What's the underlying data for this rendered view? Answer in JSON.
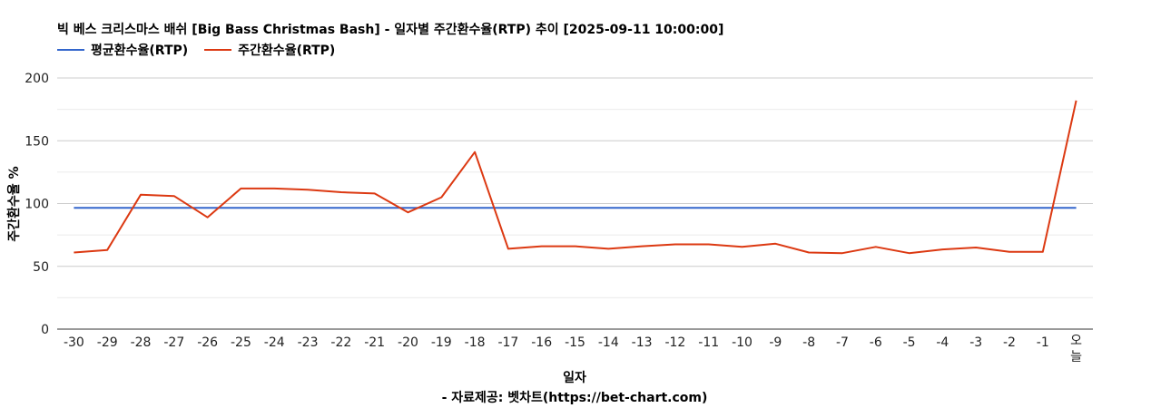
{
  "title": "빅 베스 크리스마스 배쉬 [Big Bass Christmas Bash] - 일자별 주간환수율(RTP) 추이 [2025-09-11 10:00:00]",
  "source": "- 자료제공: 벳차트(https://bet-chart.com)",
  "colors": {
    "avg": "#3366cc",
    "weekly": "#dc3912",
    "grid": "#cccccc",
    "minor_grid": "#ebebeb",
    "axis": "#333333"
  },
  "chart_data": {
    "type": "line",
    "title": "빅 베스 크리스마스 배쉬 [Big Bass Christmas Bash] - 일자별 주간환수율(RTP) 추이 [2025-09-11 10:00:00]",
    "xlabel": "일자",
    "ylabel": "주간환수율 %",
    "ylim": [
      0,
      200
    ],
    "yticks": [
      "0",
      "50",
      "100",
      "150",
      "200"
    ],
    "grid": true,
    "legend": "top-left",
    "categories": [
      "-30",
      "-29",
      "-28",
      "-27",
      "-26",
      "-25",
      "-24",
      "-23",
      "-22",
      "-21",
      "-20",
      "-19",
      "-18",
      "-17",
      "-16",
      "-15",
      "-14",
      "-13",
      "-12",
      "-11",
      "-10",
      "-9",
      "-8",
      "-7",
      "-6",
      "-5",
      "-4",
      "-3",
      "-2",
      "-1",
      "오늘"
    ],
    "series": [
      {
        "name": "평균환수율(RTP)",
        "color": "#3366cc",
        "values": [
          96.5,
          96.5,
          96.5,
          96.5,
          96.5,
          96.5,
          96.5,
          96.5,
          96.5,
          96.5,
          96.5,
          96.5,
          96.5,
          96.5,
          96.5,
          96.5,
          96.5,
          96.5,
          96.5,
          96.5,
          96.5,
          96.5,
          96.5,
          96.5,
          96.5,
          96.5,
          96.5,
          96.5,
          96.5,
          96.5,
          96.5
        ]
      },
      {
        "name": "주간환수율(RTP)",
        "color": "#dc3912",
        "values": [
          61,
          63,
          107,
          106,
          89,
          112,
          112,
          111,
          109,
          108,
          93,
          105,
          141,
          64,
          66,
          66,
          64,
          66,
          67.5,
          67.5,
          65.5,
          68,
          61,
          60.5,
          65.5,
          60.5,
          63.5,
          65,
          61.5,
          61.5,
          182
        ]
      }
    ]
  }
}
